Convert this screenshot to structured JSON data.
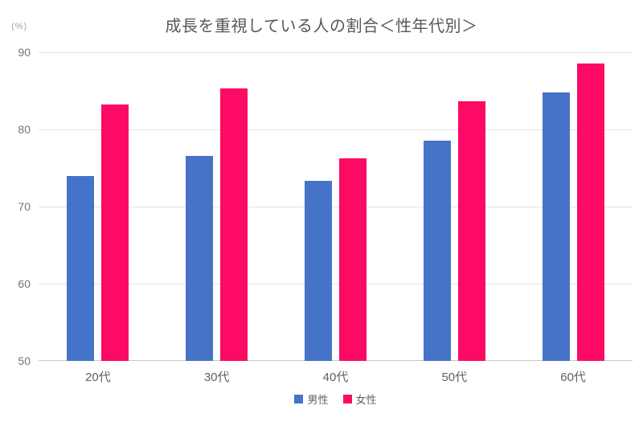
{
  "chart_data": {
    "type": "bar",
    "title": "成長を重視している人の割合＜性年代別＞",
    "unit_label": "(%)",
    "categories": [
      "20代",
      "30代",
      "40代",
      "50代",
      "60代"
    ],
    "category_keys": [
      "20s",
      "30s",
      "40s",
      "50s",
      "60s"
    ],
    "series": [
      {
        "key": "male",
        "name": "男性",
        "color": "#4573c8",
        "values": [
          74.0,
          76.6,
          73.3,
          78.5,
          84.8
        ]
      },
      {
        "key": "female",
        "name": "女性",
        "color": "#fc0a64",
        "values": [
          83.2,
          85.3,
          76.3,
          83.6,
          88.5
        ]
      }
    ],
    "ylim": [
      50,
      90
    ],
    "yticks": [
      50,
      60,
      70,
      80,
      90
    ],
    "grid": true,
    "legend_position": "bottom",
    "colors": {
      "gridline": "#e3e3e3",
      "baseline": "#c9c9c9",
      "title_text": "#575757",
      "axis_text": "#757575",
      "category_text": "#616161"
    }
  }
}
